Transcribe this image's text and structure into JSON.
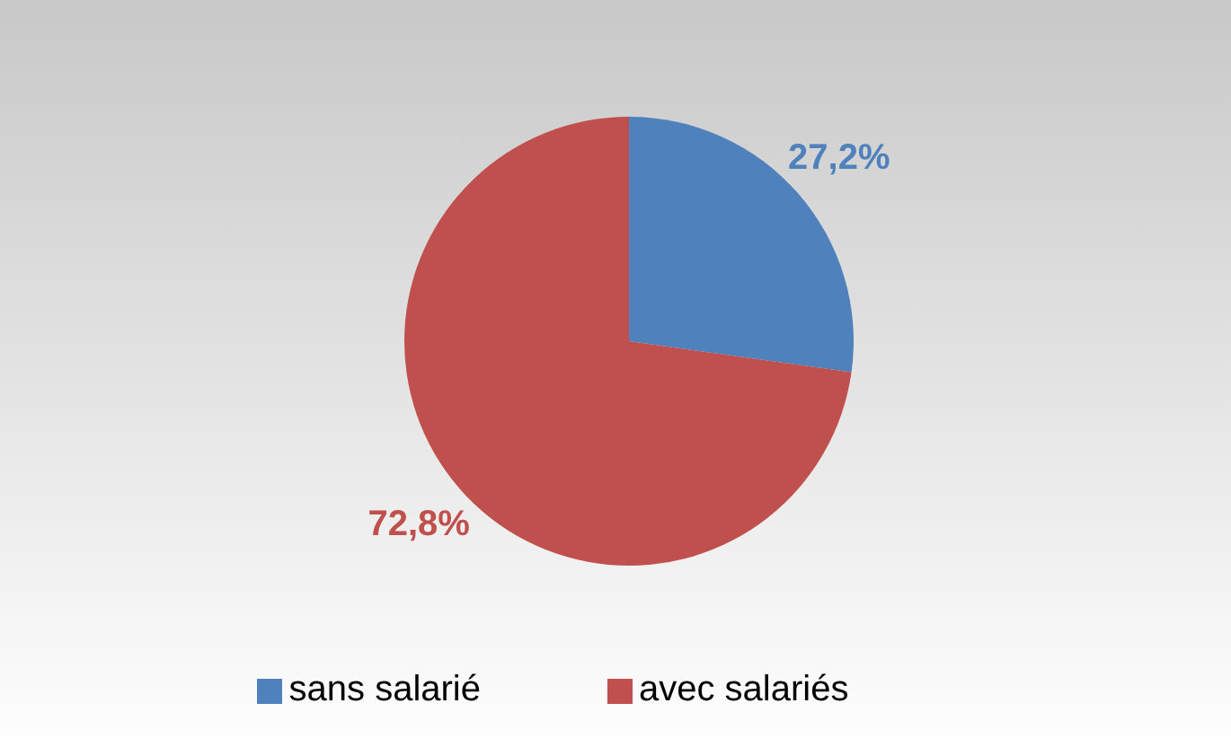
{
  "chart_data": {
    "type": "pie",
    "categories": [
      "sans salarié",
      "avec salariés"
    ],
    "values": [
      27.2,
      72.8
    ],
    "colors": [
      "#4f81bd",
      "#c0504d"
    ],
    "value_labels": [
      "27,2%",
      "72,8%"
    ],
    "legend": "bottom"
  }
}
